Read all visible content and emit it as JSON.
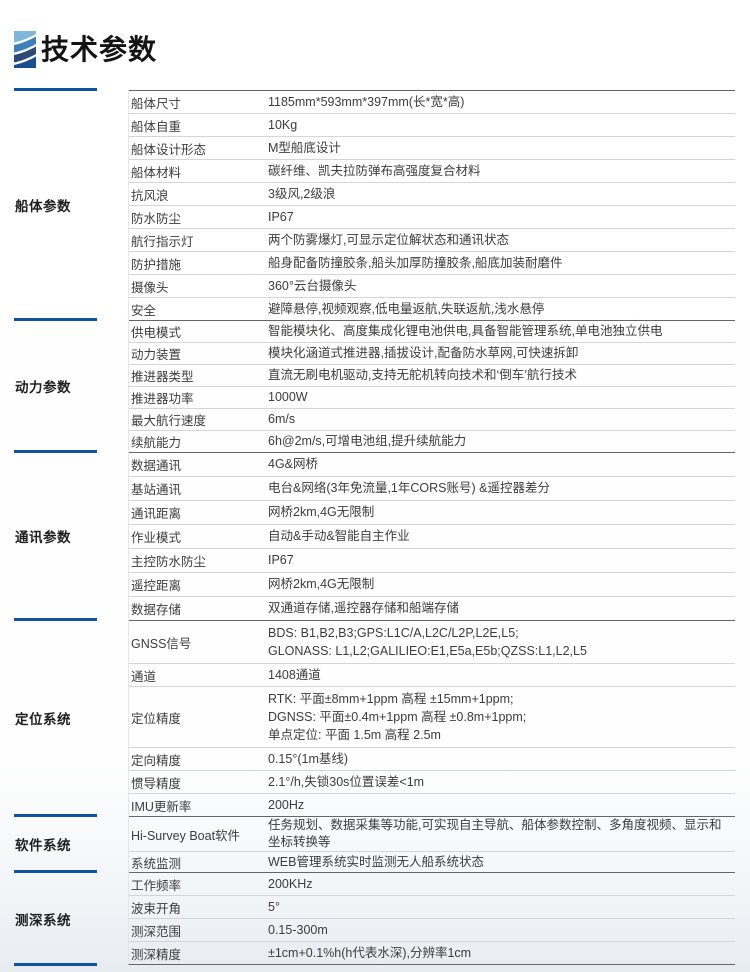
{
  "page": {
    "title": "技术参数"
  },
  "colors": {
    "accent_blue": "#10529e",
    "section_border": "#63666a",
    "row_border": "#d3d5d8"
  },
  "icon": {
    "name": "brand-wave-icon",
    "bands": [
      "#7fb7da",
      "#3f7fb8",
      "#2c4a72",
      "#1b4c8f"
    ]
  },
  "table": {
    "sections": [
      {
        "category": "船体参数",
        "rows": [
          {
            "label": "船体尺寸",
            "value": "1185mm*593mm*397mm(长*宽*高)"
          },
          {
            "label": "船体自重",
            "value": "10Kg"
          },
          {
            "label": "船体设计形态",
            "value": "M型船底设计"
          },
          {
            "label": "船体材料",
            "value": "碳纤维、凯夫拉防弹布高强度复合材料"
          },
          {
            "label": "抗风浪",
            "value": "3级风,2级浪"
          },
          {
            "label": "防水防尘",
            "value": "IP67"
          },
          {
            "label": "航行指示灯",
            "value": "两个防雾爆灯,可显示定位解状态和通讯状态"
          },
          {
            "label": "防护措施",
            "value": "船身配备防撞胶条,船头加厚防撞胶条,船底加装耐磨件"
          },
          {
            "label": "摄像头",
            "value": "360°云台摄像头"
          },
          {
            "label": "安全",
            "value": "避障悬停,视频观察,低电量返航,失联返航,浅水悬停"
          }
        ]
      },
      {
        "category": "动力参数",
        "rows": [
          {
            "label": "供电模式",
            "value": "智能模块化、高度集成化锂电池供电,具备智能管理系统,单电池独立供电"
          },
          {
            "label": "动力装置",
            "value": "模块化涵道式推进器,插拔设计,配备防水草网,可快速拆卸"
          },
          {
            "label": "推进器类型",
            "value": "直流无刷电机驱动,支持无舵机转向技术和‘倒车’航行技术"
          },
          {
            "label": "推进器功率",
            "value": "1000W"
          },
          {
            "label": "最大航行速度",
            "value": "6m/s"
          },
          {
            "label": "续航能力",
            "value": "6h@2m/s,可增电池组,提升续航能力"
          }
        ]
      },
      {
        "category": "通讯参数",
        "rows": [
          {
            "label": "数据通讯",
            "value": "4G&网桥"
          },
          {
            "label": "基站通讯",
            "value": "电台&网络(3年免流量,1年CORS账号) &遥控器差分"
          },
          {
            "label": "通讯距离",
            "value": "网桥2km,4G无限制"
          },
          {
            "label": "作业模式",
            "value": "自动&手动&智能自主作业"
          },
          {
            "label": "主控防水防尘",
            "value": "IP67"
          },
          {
            "label": "遥控距离",
            "value": "网桥2km,4G无限制"
          },
          {
            "label": "数据存储",
            "value": "双通道存储,遥控器存储和船端存储"
          }
        ]
      },
      {
        "category": "定位系统",
        "rows": [
          {
            "label": "GNSS信号",
            "lines": [
              "BDS: B1,B2,B3;GPS:L1C/A,L2C/L2P,L2E,L5;",
              "GLONASS: L1,L2;GALILIEO:E1,E5a,E5b;QZSS:L1,L2,L5"
            ]
          },
          {
            "label": "通道",
            "value": "1408通道"
          },
          {
            "label": "定位精度",
            "lines": [
              "RTK: 平面±8mm+1ppm 高程 ±15mm+1ppm;",
              "DGNSS: 平面±0.4m+1ppm 高程 ±0.8m+1ppm;",
              "单点定位: 平面 1.5m 高程 2.5m"
            ]
          },
          {
            "label": "定向精度",
            "value": "0.15°(1m基线)"
          },
          {
            "label": "惯导精度",
            "value": "2.1°/h,失锁30s位置误差<1m"
          },
          {
            "label": "IMU更新率",
            "value": "200Hz"
          }
        ]
      },
      {
        "category": "软件系统",
        "rows": [
          {
            "label": "Hi-Survey Boat软件",
            "value": "任务规划、数据采集等功能,可实现自主导航、船体参数控制、多角度视频、显示和坐标转换等"
          },
          {
            "label": "系统监测",
            "value": "WEB管理系统实时监测无人船系统状态"
          }
        ]
      },
      {
        "category": "测深系统",
        "rows": [
          {
            "label": "工作频率",
            "value": "200KHz"
          },
          {
            "label": "波束开角",
            "value": "5°"
          },
          {
            "label": "测深范围",
            "value": "0.15-300m"
          },
          {
            "label": "测深精度",
            "value": "±1cm+0.1%h(h代表水深),分辨率1cm"
          }
        ]
      }
    ]
  }
}
